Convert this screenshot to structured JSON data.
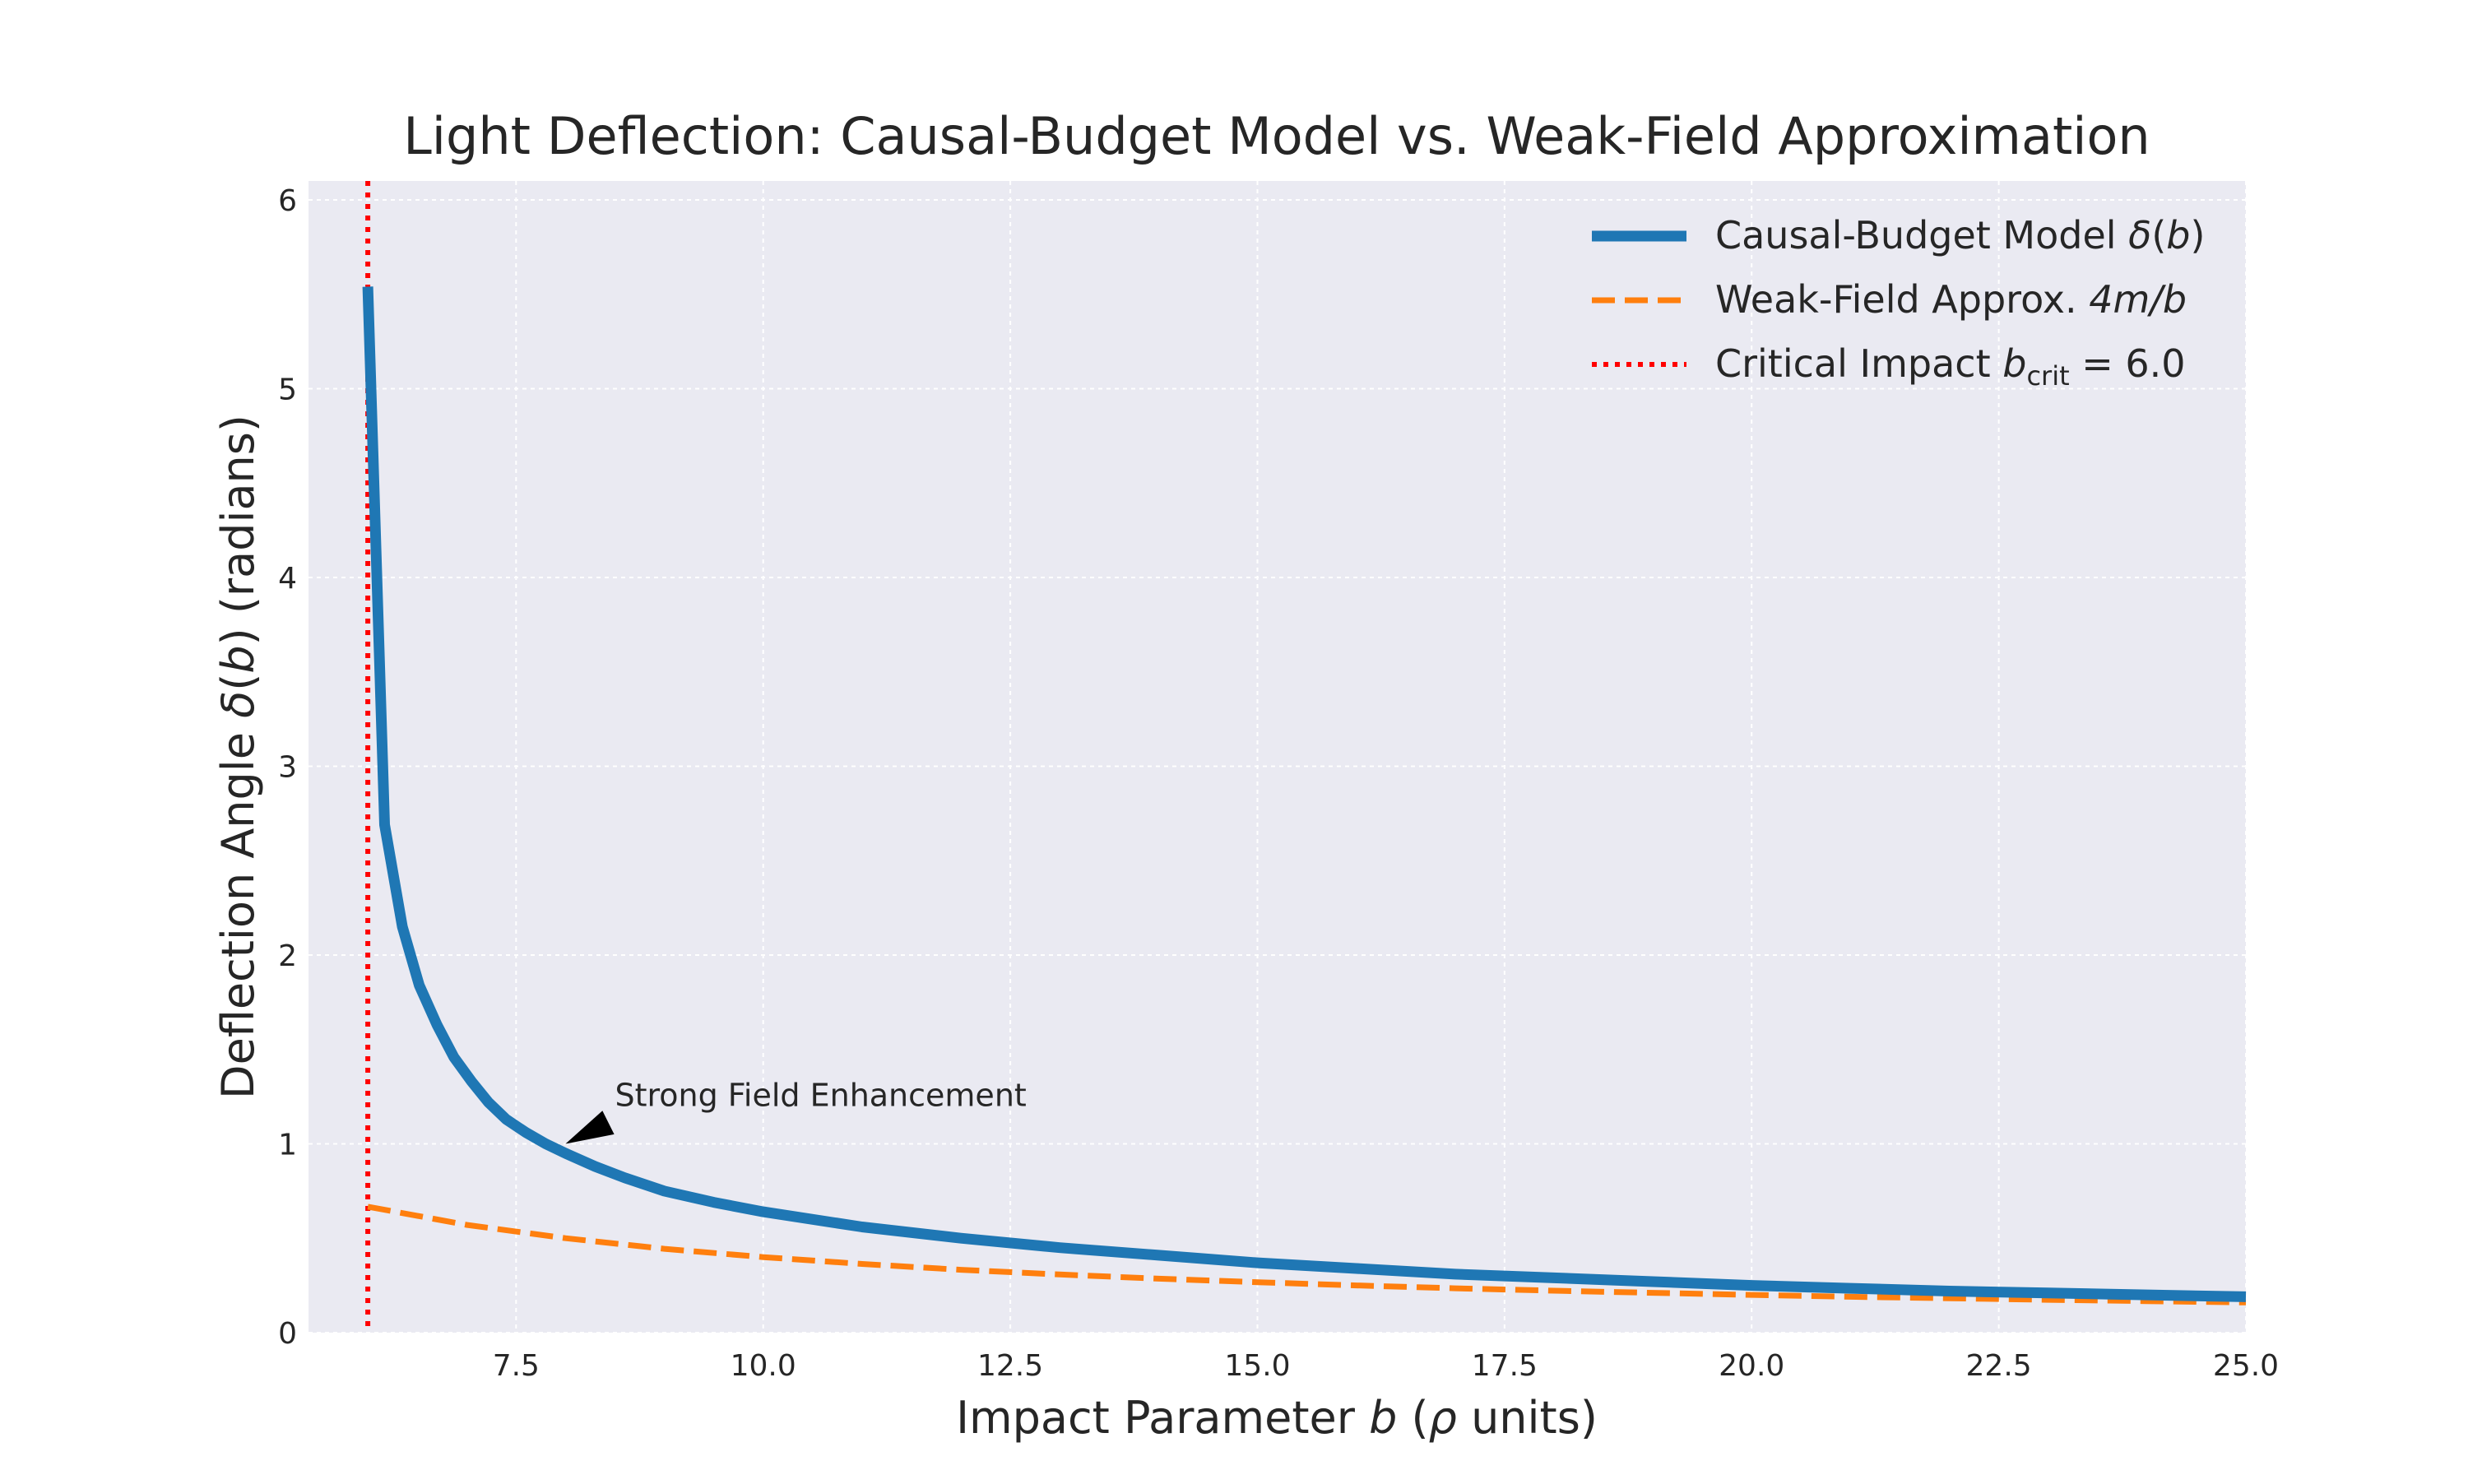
{
  "chart_data": {
    "type": "line",
    "title": "Light Deflection: Causal-Budget Model vs. Weak-Field Approximation",
    "xlabel": {
      "pre": "Impact Parameter ",
      "var": "b",
      "mid": " (",
      "sym": "ρ",
      "post": " units)"
    },
    "ylabel": {
      "pre": "Deflection Angle ",
      "sym": "δ",
      "open": "(",
      "var": "b",
      "close": ")",
      "post": " (radians)"
    },
    "xlim": [
      5.4,
      25.0
    ],
    "ylim": [
      0,
      6.1
    ],
    "xticks": [
      "7.5",
      "10.0",
      "12.5",
      "15.0",
      "17.5",
      "20.0",
      "22.5",
      "25.0"
    ],
    "xtick_values": [
      7.5,
      10.0,
      12.5,
      15.0,
      17.5,
      20.0,
      22.5,
      25.0
    ],
    "yticks": [
      "0",
      "1",
      "2",
      "3",
      "4",
      "5",
      "6"
    ],
    "ytick_values": [
      0,
      1,
      2,
      3,
      4,
      5,
      6
    ],
    "grid": true,
    "legend_position": "top-right",
    "colors": {
      "causal": "#1f77b4",
      "weak": "#ff7f0e",
      "critical": "#ff0000",
      "plot_bg": "#eaeaf2",
      "grid": "#ffffff"
    },
    "series": [
      {
        "name": "Causal-Budget Model δ(b)",
        "legend": {
          "pre": "Causal-Budget Model ",
          "sym": "δ",
          "open": "(",
          "var": "b",
          "close": ")"
        },
        "style": "solid",
        "x": [
          6.0,
          6.17,
          6.35,
          6.52,
          6.7,
          6.87,
          7.05,
          7.22,
          7.4,
          7.6,
          7.8,
          8.0,
          8.3,
          8.6,
          9.0,
          9.5,
          10.0,
          11.0,
          12.0,
          13.0,
          14.0,
          15.0,
          16.0,
          17.0,
          18.0,
          19.0,
          20.0,
          21.0,
          22.0,
          23.0,
          24.0,
          25.0
        ],
        "y": [
          5.54,
          2.69,
          2.15,
          1.84,
          1.63,
          1.46,
          1.33,
          1.22,
          1.13,
          1.06,
          1.0,
          0.95,
          0.88,
          0.82,
          0.75,
          0.69,
          0.64,
          0.56,
          0.5,
          0.45,
          0.41,
          0.37,
          0.34,
          0.31,
          0.29,
          0.27,
          0.25,
          0.235,
          0.22,
          0.21,
          0.2,
          0.19
        ]
      },
      {
        "name": "Weak-Field Approx. 4m/b",
        "legend": {
          "pre": "Weak-Field Approx. ",
          "expr": "4m/b"
        },
        "style": "dashed",
        "x": [
          6.0,
          7.0,
          8.0,
          9.0,
          10.0,
          11.0,
          12.0,
          13.0,
          14.0,
          15.0,
          16.0,
          17.0,
          18.0,
          19.0,
          20.0,
          21.0,
          22.0,
          23.0,
          24.0,
          25.0
        ],
        "y": [
          0.667,
          0.571,
          0.5,
          0.444,
          0.4,
          0.364,
          0.333,
          0.308,
          0.286,
          0.267,
          0.25,
          0.235,
          0.222,
          0.211,
          0.2,
          0.19,
          0.182,
          0.174,
          0.167,
          0.16
        ]
      },
      {
        "name": "Critical Impact b_crit = 6.0",
        "legend": {
          "pre": "Critical Impact ",
          "var": "b",
          "sub": "crit",
          "post": " = 6.0"
        },
        "style": "dotted",
        "vline_x": 6.0
      }
    ],
    "annotation": {
      "text": "Strong Field Enhancement",
      "point": [
        8.0,
        1.0
      ],
      "text_pos": [
        8.5,
        1.2
      ]
    }
  }
}
